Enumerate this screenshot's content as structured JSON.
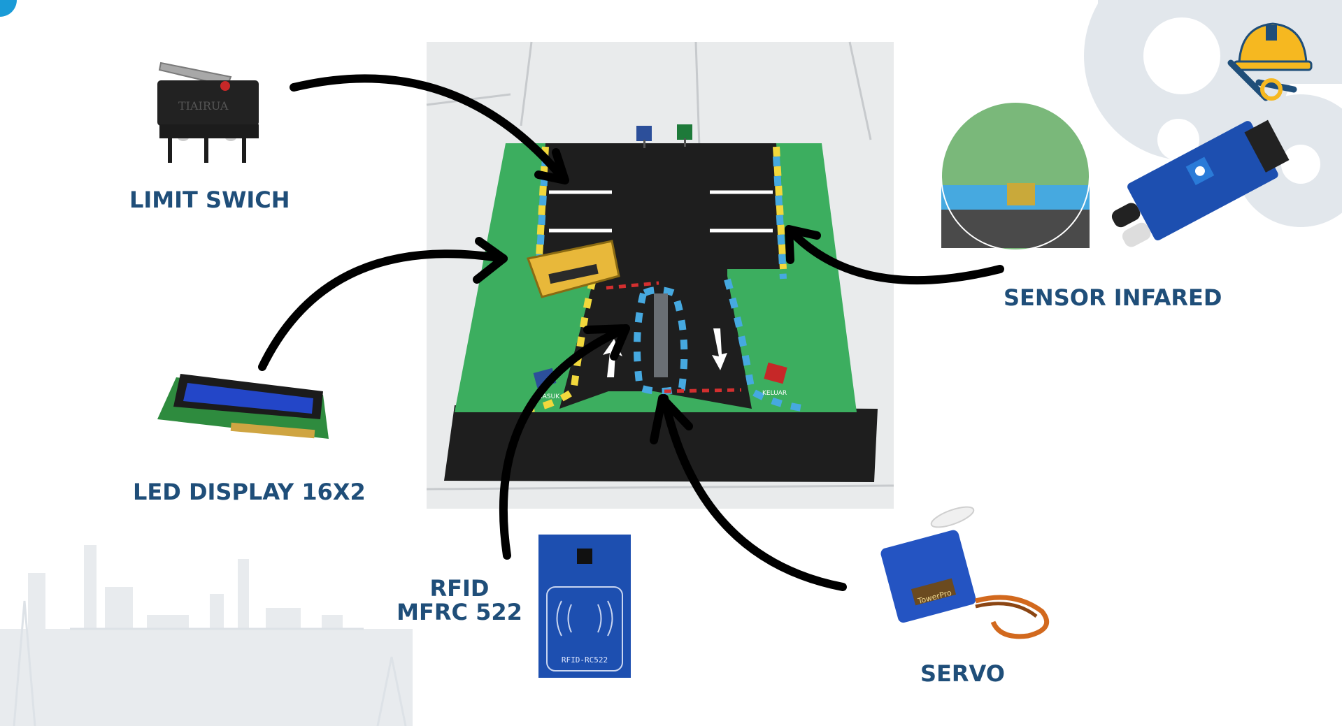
{
  "labels": {
    "limit_switch": "LIMIT SWICH",
    "led_display": "LED DISPLAY 16X2",
    "rfid_line1": "RFID",
    "rfid_line2": "MFRC 522",
    "sensor": "SENSOR INFARED",
    "servo": "SERVO"
  },
  "component_markings": {
    "limit_switch": "TIAIRUA",
    "rfid_board": "RFID-RC522",
    "servo": "TowerPro"
  },
  "model_signs": {
    "entry": "MASUK",
    "exit": "KELUAR"
  },
  "colors": {
    "label_text": "#1f4e79",
    "arrow": "#000000",
    "board_green": "#3cae5f",
    "road_black": "#1e1e1e",
    "pcb_blue": "#1d4fb0",
    "gear_gray": "#dfe4ea",
    "helmet_yellow": "#f6b820"
  }
}
